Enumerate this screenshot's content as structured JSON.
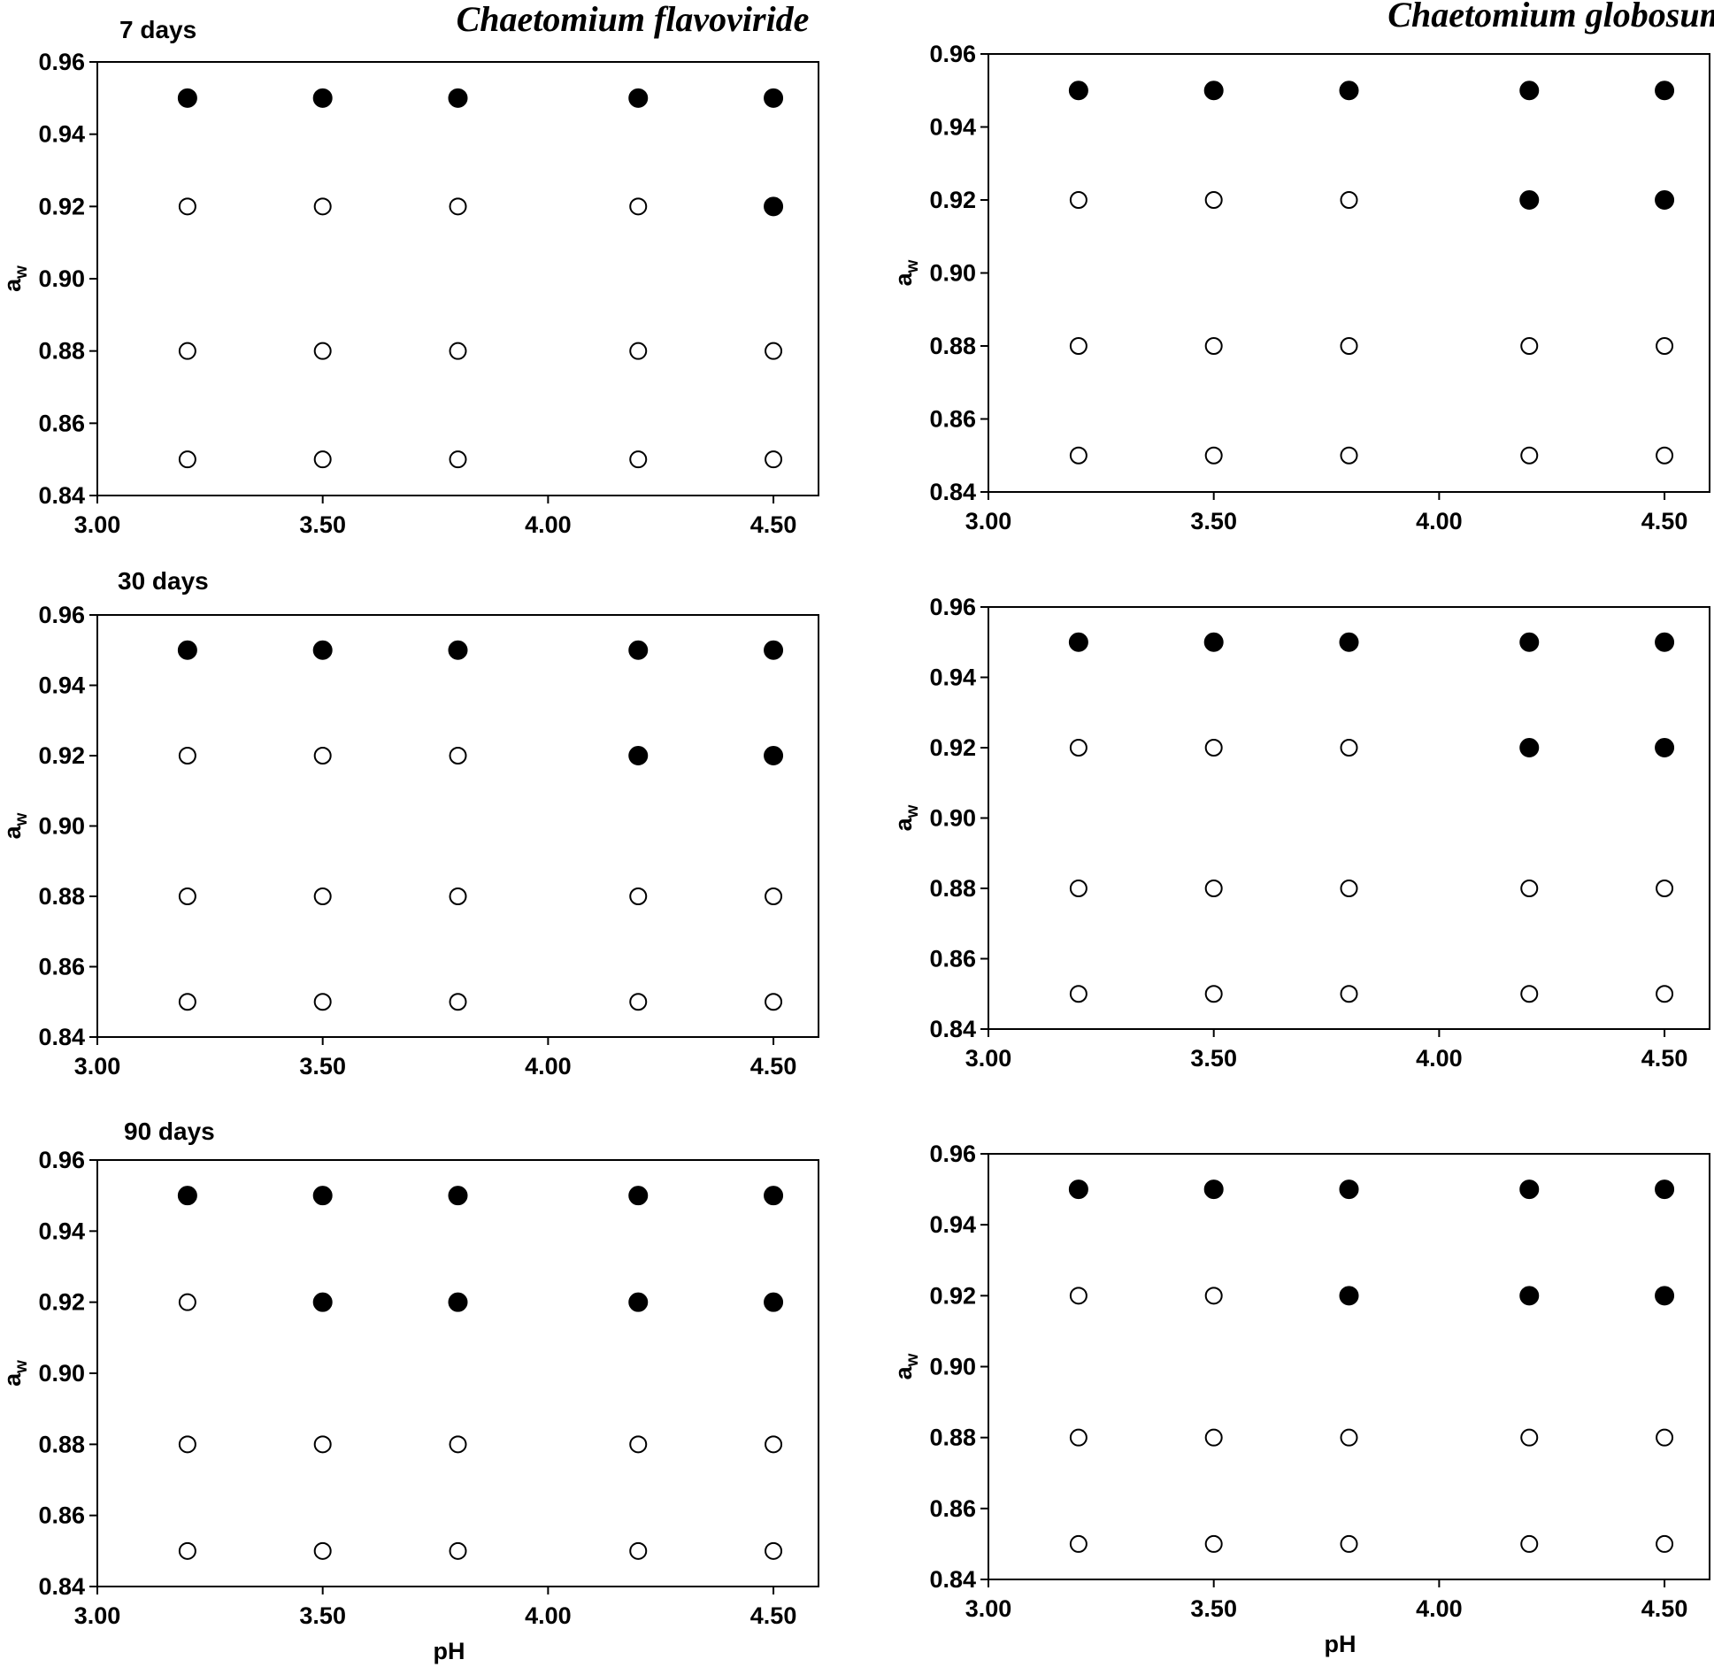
{
  "figure": {
    "species_titles": [
      "Chaetomium flavoviride",
      "Chaetomium globosum"
    ],
    "colors": {
      "filled": "#000000",
      "open": "#ffffff",
      "stroke": "#000000"
    }
  },
  "chart_data": [
    {
      "type": "scatter",
      "panel": "flavoviride-7-days",
      "day_label": "7 days",
      "xlabel": "",
      "ylabel_main": "a",
      "ylabel_sub": "w",
      "xlim": [
        3.0,
        4.6
      ],
      "ylim": [
        0.84,
        0.96
      ],
      "x_ticks": [
        3.0,
        3.5,
        4.0,
        4.5
      ],
      "x_tick_labels": [
        "3.00",
        "3.50",
        "4.00",
        "4.50"
      ],
      "y_ticks": [
        0.84,
        0.86,
        0.88,
        0.9,
        0.92,
        0.94,
        0.96
      ],
      "y_tick_labels": [
        "0.84",
        "0.86",
        "0.88",
        "0.90",
        "0.92",
        "0.94",
        "0.96"
      ],
      "points": [
        {
          "x": 3.2,
          "y": 0.95,
          "filled": true
        },
        {
          "x": 3.5,
          "y": 0.95,
          "filled": true
        },
        {
          "x": 3.8,
          "y": 0.95,
          "filled": true
        },
        {
          "x": 4.2,
          "y": 0.95,
          "filled": true
        },
        {
          "x": 4.5,
          "y": 0.95,
          "filled": true
        },
        {
          "x": 3.2,
          "y": 0.92,
          "filled": false
        },
        {
          "x": 3.5,
          "y": 0.92,
          "filled": false
        },
        {
          "x": 3.8,
          "y": 0.92,
          "filled": false
        },
        {
          "x": 4.2,
          "y": 0.92,
          "filled": false
        },
        {
          "x": 4.5,
          "y": 0.92,
          "filled": true
        },
        {
          "x": 3.2,
          "y": 0.88,
          "filled": false
        },
        {
          "x": 3.5,
          "y": 0.88,
          "filled": false
        },
        {
          "x": 3.8,
          "y": 0.88,
          "filled": false
        },
        {
          "x": 4.2,
          "y": 0.88,
          "filled": false
        },
        {
          "x": 4.5,
          "y": 0.88,
          "filled": false
        },
        {
          "x": 3.2,
          "y": 0.85,
          "filled": false
        },
        {
          "x": 3.5,
          "y": 0.85,
          "filled": false
        },
        {
          "x": 3.8,
          "y": 0.85,
          "filled": false
        },
        {
          "x": 4.2,
          "y": 0.85,
          "filled": false
        },
        {
          "x": 4.5,
          "y": 0.85,
          "filled": false
        }
      ]
    },
    {
      "type": "scatter",
      "panel": "globosum-7-days",
      "day_label": "",
      "xlabel": "",
      "ylabel_main": "a",
      "ylabel_sub": "w",
      "xlim": [
        3.0,
        4.6
      ],
      "ylim": [
        0.84,
        0.96
      ],
      "x_ticks": [
        3.0,
        3.5,
        4.0,
        4.5
      ],
      "x_tick_labels": [
        "3.00",
        "3.50",
        "4.00",
        "4.50"
      ],
      "y_ticks": [
        0.84,
        0.86,
        0.88,
        0.9,
        0.92,
        0.94,
        0.96
      ],
      "y_tick_labels": [
        "0.84",
        "0.86",
        "0.88",
        "0.90",
        "0.92",
        "0.94",
        "0.96"
      ],
      "points": [
        {
          "x": 3.2,
          "y": 0.95,
          "filled": true
        },
        {
          "x": 3.5,
          "y": 0.95,
          "filled": true
        },
        {
          "x": 3.8,
          "y": 0.95,
          "filled": true
        },
        {
          "x": 4.2,
          "y": 0.95,
          "filled": true
        },
        {
          "x": 4.5,
          "y": 0.95,
          "filled": true
        },
        {
          "x": 3.2,
          "y": 0.92,
          "filled": false
        },
        {
          "x": 3.5,
          "y": 0.92,
          "filled": false
        },
        {
          "x": 3.8,
          "y": 0.92,
          "filled": false
        },
        {
          "x": 4.2,
          "y": 0.92,
          "filled": true
        },
        {
          "x": 4.5,
          "y": 0.92,
          "filled": true
        },
        {
          "x": 3.2,
          "y": 0.88,
          "filled": false
        },
        {
          "x": 3.5,
          "y": 0.88,
          "filled": false
        },
        {
          "x": 3.8,
          "y": 0.88,
          "filled": false
        },
        {
          "x": 4.2,
          "y": 0.88,
          "filled": false
        },
        {
          "x": 4.5,
          "y": 0.88,
          "filled": false
        },
        {
          "x": 3.2,
          "y": 0.85,
          "filled": false
        },
        {
          "x": 3.5,
          "y": 0.85,
          "filled": false
        },
        {
          "x": 3.8,
          "y": 0.85,
          "filled": false
        },
        {
          "x": 4.2,
          "y": 0.85,
          "filled": false
        },
        {
          "x": 4.5,
          "y": 0.85,
          "filled": false
        }
      ]
    },
    {
      "type": "scatter",
      "panel": "flavoviride-30-days",
      "day_label": "30 days",
      "xlabel": "",
      "ylabel_main": "a",
      "ylabel_sub": "w",
      "xlim": [
        3.0,
        4.6
      ],
      "ylim": [
        0.84,
        0.96
      ],
      "x_ticks": [
        3.0,
        3.5,
        4.0,
        4.5
      ],
      "x_tick_labels": [
        "3.00",
        "3.50",
        "4.00",
        "4.50"
      ],
      "y_ticks": [
        0.84,
        0.86,
        0.88,
        0.9,
        0.92,
        0.94,
        0.96
      ],
      "y_tick_labels": [
        "0.84",
        "0.86",
        "0.88",
        "0.90",
        "0.92",
        "0.94",
        "0.96"
      ],
      "points": [
        {
          "x": 3.2,
          "y": 0.95,
          "filled": true
        },
        {
          "x": 3.5,
          "y": 0.95,
          "filled": true
        },
        {
          "x": 3.8,
          "y": 0.95,
          "filled": true
        },
        {
          "x": 4.2,
          "y": 0.95,
          "filled": true
        },
        {
          "x": 4.5,
          "y": 0.95,
          "filled": true
        },
        {
          "x": 3.2,
          "y": 0.92,
          "filled": false
        },
        {
          "x": 3.5,
          "y": 0.92,
          "filled": false
        },
        {
          "x": 3.8,
          "y": 0.92,
          "filled": false
        },
        {
          "x": 4.2,
          "y": 0.92,
          "filled": true
        },
        {
          "x": 4.5,
          "y": 0.92,
          "filled": true
        },
        {
          "x": 3.2,
          "y": 0.88,
          "filled": false
        },
        {
          "x": 3.5,
          "y": 0.88,
          "filled": false
        },
        {
          "x": 3.8,
          "y": 0.88,
          "filled": false
        },
        {
          "x": 4.2,
          "y": 0.88,
          "filled": false
        },
        {
          "x": 4.5,
          "y": 0.88,
          "filled": false
        },
        {
          "x": 3.2,
          "y": 0.85,
          "filled": false
        },
        {
          "x": 3.5,
          "y": 0.85,
          "filled": false
        },
        {
          "x": 3.8,
          "y": 0.85,
          "filled": false
        },
        {
          "x": 4.2,
          "y": 0.85,
          "filled": false
        },
        {
          "x": 4.5,
          "y": 0.85,
          "filled": false
        }
      ]
    },
    {
      "type": "scatter",
      "panel": "globosum-30-days",
      "day_label": "",
      "xlabel": "",
      "ylabel_main": "a",
      "ylabel_sub": "w",
      "xlim": [
        3.0,
        4.6
      ],
      "ylim": [
        0.84,
        0.96
      ],
      "x_ticks": [
        3.0,
        3.5,
        4.0,
        4.5
      ],
      "x_tick_labels": [
        "3.00",
        "3.50",
        "4.00",
        "4.50"
      ],
      "y_ticks": [
        0.84,
        0.86,
        0.88,
        0.9,
        0.92,
        0.94,
        0.96
      ],
      "y_tick_labels": [
        "0.84",
        "0.86",
        "0.88",
        "0.90",
        "0.92",
        "0.94",
        "0.96"
      ],
      "points": [
        {
          "x": 3.2,
          "y": 0.95,
          "filled": true
        },
        {
          "x": 3.5,
          "y": 0.95,
          "filled": true
        },
        {
          "x": 3.8,
          "y": 0.95,
          "filled": true
        },
        {
          "x": 4.2,
          "y": 0.95,
          "filled": true
        },
        {
          "x": 4.5,
          "y": 0.95,
          "filled": true
        },
        {
          "x": 3.2,
          "y": 0.92,
          "filled": false
        },
        {
          "x": 3.5,
          "y": 0.92,
          "filled": false
        },
        {
          "x": 3.8,
          "y": 0.92,
          "filled": false
        },
        {
          "x": 4.2,
          "y": 0.92,
          "filled": true
        },
        {
          "x": 4.5,
          "y": 0.92,
          "filled": true
        },
        {
          "x": 3.2,
          "y": 0.88,
          "filled": false
        },
        {
          "x": 3.5,
          "y": 0.88,
          "filled": false
        },
        {
          "x": 3.8,
          "y": 0.88,
          "filled": false
        },
        {
          "x": 4.2,
          "y": 0.88,
          "filled": false
        },
        {
          "x": 4.5,
          "y": 0.88,
          "filled": false
        },
        {
          "x": 3.2,
          "y": 0.85,
          "filled": false
        },
        {
          "x": 3.5,
          "y": 0.85,
          "filled": false
        },
        {
          "x": 3.8,
          "y": 0.85,
          "filled": false
        },
        {
          "x": 4.2,
          "y": 0.85,
          "filled": false
        },
        {
          "x": 4.5,
          "y": 0.85,
          "filled": false
        }
      ]
    },
    {
      "type": "scatter",
      "panel": "flavoviride-90-days",
      "day_label": "90 days",
      "xlabel": "pH",
      "ylabel_main": "a",
      "ylabel_sub": "w",
      "xlim": [
        3.0,
        4.6
      ],
      "ylim": [
        0.84,
        0.96
      ],
      "x_ticks": [
        3.0,
        3.5,
        4.0,
        4.5
      ],
      "x_tick_labels": [
        "3.00",
        "3.50",
        "4.00",
        "4.50"
      ],
      "y_ticks": [
        0.84,
        0.86,
        0.88,
        0.9,
        0.92,
        0.94,
        0.96
      ],
      "y_tick_labels": [
        "0.84",
        "0.86",
        "0.88",
        "0.90",
        "0.92",
        "0.94",
        "0.96"
      ],
      "points": [
        {
          "x": 3.2,
          "y": 0.95,
          "filled": true
        },
        {
          "x": 3.5,
          "y": 0.95,
          "filled": true
        },
        {
          "x": 3.8,
          "y": 0.95,
          "filled": true
        },
        {
          "x": 4.2,
          "y": 0.95,
          "filled": true
        },
        {
          "x": 4.5,
          "y": 0.95,
          "filled": true
        },
        {
          "x": 3.2,
          "y": 0.92,
          "filled": false
        },
        {
          "x": 3.5,
          "y": 0.92,
          "filled": true
        },
        {
          "x": 3.8,
          "y": 0.92,
          "filled": true
        },
        {
          "x": 4.2,
          "y": 0.92,
          "filled": true
        },
        {
          "x": 4.5,
          "y": 0.92,
          "filled": true
        },
        {
          "x": 3.2,
          "y": 0.88,
          "filled": false
        },
        {
          "x": 3.5,
          "y": 0.88,
          "filled": false
        },
        {
          "x": 3.8,
          "y": 0.88,
          "filled": false
        },
        {
          "x": 4.2,
          "y": 0.88,
          "filled": false
        },
        {
          "x": 4.5,
          "y": 0.88,
          "filled": false
        },
        {
          "x": 3.2,
          "y": 0.85,
          "filled": false
        },
        {
          "x": 3.5,
          "y": 0.85,
          "filled": false
        },
        {
          "x": 3.8,
          "y": 0.85,
          "filled": false
        },
        {
          "x": 4.2,
          "y": 0.85,
          "filled": false
        },
        {
          "x": 4.5,
          "y": 0.85,
          "filled": false
        }
      ]
    },
    {
      "type": "scatter",
      "panel": "globosum-90-days",
      "day_label": "",
      "xlabel": "pH",
      "ylabel_main": "a",
      "ylabel_sub": "w",
      "xlim": [
        3.0,
        4.6
      ],
      "ylim": [
        0.84,
        0.96
      ],
      "x_ticks": [
        3.0,
        3.5,
        4.0,
        4.5
      ],
      "x_tick_labels": [
        "3.00",
        "3.50",
        "4.00",
        "4.50"
      ],
      "y_ticks": [
        0.84,
        0.86,
        0.88,
        0.9,
        0.92,
        0.94,
        0.96
      ],
      "y_tick_labels": [
        "0.84",
        "0.86",
        "0.88",
        "0.90",
        "0.92",
        "0.94",
        "0.96"
      ],
      "points": [
        {
          "x": 3.2,
          "y": 0.95,
          "filled": true
        },
        {
          "x": 3.5,
          "y": 0.95,
          "filled": true
        },
        {
          "x": 3.8,
          "y": 0.95,
          "filled": true
        },
        {
          "x": 4.2,
          "y": 0.95,
          "filled": true
        },
        {
          "x": 4.5,
          "y": 0.95,
          "filled": true
        },
        {
          "x": 3.2,
          "y": 0.92,
          "filled": false
        },
        {
          "x": 3.5,
          "y": 0.92,
          "filled": false
        },
        {
          "x": 3.8,
          "y": 0.92,
          "filled": true
        },
        {
          "x": 4.2,
          "y": 0.92,
          "filled": true
        },
        {
          "x": 4.5,
          "y": 0.92,
          "filled": true
        },
        {
          "x": 3.2,
          "y": 0.88,
          "filled": false
        },
        {
          "x": 3.5,
          "y": 0.88,
          "filled": false
        },
        {
          "x": 3.8,
          "y": 0.88,
          "filled": false
        },
        {
          "x": 4.2,
          "y": 0.88,
          "filled": false
        },
        {
          "x": 4.5,
          "y": 0.88,
          "filled": false
        },
        {
          "x": 3.2,
          "y": 0.85,
          "filled": false
        },
        {
          "x": 3.5,
          "y": 0.85,
          "filled": false
        },
        {
          "x": 3.8,
          "y": 0.85,
          "filled": false
        },
        {
          "x": 4.2,
          "y": 0.85,
          "filled": false
        },
        {
          "x": 4.5,
          "y": 0.85,
          "filled": false
        }
      ]
    }
  ]
}
